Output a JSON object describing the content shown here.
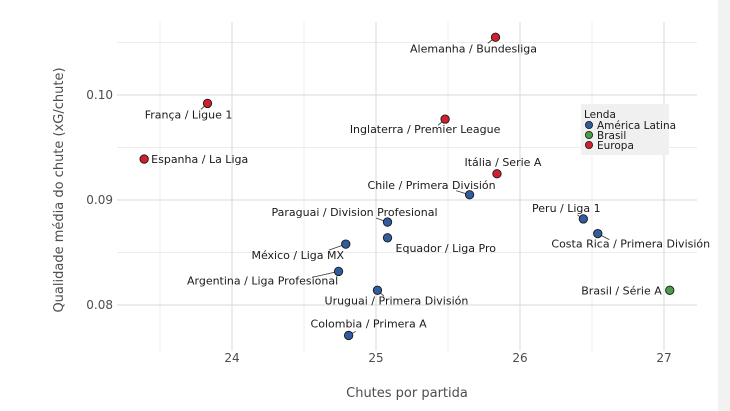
{
  "chart_data": {
    "type": "scatter",
    "xlabel": "Chutes por partida",
    "ylabel": "Qualidade média do chute (xG/chute)",
    "xlim": [
      23.3,
      27.25
    ],
    "ylim": [
      0.0755,
      0.1072
    ],
    "x_ticks": [
      24,
      25,
      26,
      27
    ],
    "x_tick_labels": [
      "24",
      "25",
      "26",
      "27"
    ],
    "y_ticks": [
      0.08,
      0.09,
      0.1
    ],
    "y_tick_labels": [
      "0.08",
      "0.09",
      "0.10"
    ],
    "grid": true,
    "legend": {
      "title": "Lenda",
      "position": "right",
      "entries": [
        {
          "name": "América Latina",
          "color": "#2f5d9e"
        },
        {
          "name": "Brasil",
          "color": "#4c9a4c"
        },
        {
          "name": "Europa",
          "color": "#d0202e"
        }
      ]
    },
    "points": [
      {
        "label": "Alemanha / Bundesliga",
        "group": "Europa",
        "x": 25.83,
        "y": 0.1055
      },
      {
        "label": "França / Ligue 1",
        "group": "Europa",
        "x": 23.83,
        "y": 0.0992
      },
      {
        "label": "Inglaterra / Premier League",
        "group": "Europa",
        "x": 25.48,
        "y": 0.0977
      },
      {
        "label": "Espanha / La Liga",
        "group": "Europa",
        "x": 23.39,
        "y": 0.0939
      },
      {
        "label": "Itália / Serie A",
        "group": "Europa",
        "x": 25.84,
        "y": 0.0925
      },
      {
        "label": "Chile / Primera División",
        "group": "América Latina",
        "x": 25.65,
        "y": 0.0905
      },
      {
        "label": "Peru / Liga 1",
        "group": "América Latina",
        "x": 26.44,
        "y": 0.0882
      },
      {
        "label": "Costa Rica / Primera División",
        "group": "América Latina",
        "x": 26.54,
        "y": 0.0868
      },
      {
        "label": "Paraguai / Division Profesional",
        "group": "América Latina",
        "x": 25.08,
        "y": 0.0879
      },
      {
        "label": "Equador / Liga Pro",
        "group": "América Latina",
        "x": 25.08,
        "y": 0.0864
      },
      {
        "label": "México / Liga MX",
        "group": "América Latina",
        "x": 24.79,
        "y": 0.0858
      },
      {
        "label": "Argentina / Liga Profesional",
        "group": "América Latina",
        "x": 24.74,
        "y": 0.0832
      },
      {
        "label": "Uruguai / Primera División",
        "group": "América Latina",
        "x": 25.01,
        "y": 0.0814
      },
      {
        "label": "Brasil / Série A",
        "group": "Brasil",
        "x": 27.04,
        "y": 0.0814
      },
      {
        "label": "Colombia / Primera A",
        "group": "América Latina",
        "x": 24.81,
        "y": 0.0771
      }
    ]
  }
}
